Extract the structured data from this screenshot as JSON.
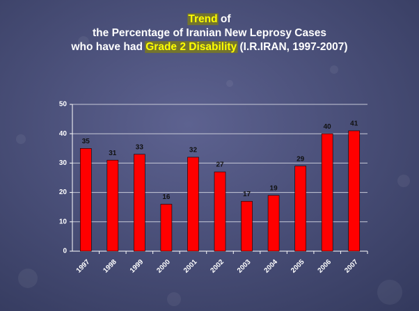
{
  "chart_data": {
    "type": "bar",
    "title_lines": [
      [
        {
          "text": "Trend",
          "highlight": true
        },
        {
          "text": " of",
          "highlight": false
        }
      ],
      [
        {
          "text": "the Percentage of Iranian New Leprosy Cases",
          "highlight": false
        }
      ],
      [
        {
          "text": "who have had ",
          "highlight": false
        },
        {
          "text": "Grade 2 Disability",
          "highlight": true
        },
        {
          "text": " (I.R.IRAN, 1997-2007)",
          "highlight": false
        }
      ]
    ],
    "categories": [
      "1997",
      "1998",
      "1999",
      "2000",
      "2001",
      "2002",
      "2003",
      "2004",
      "2005",
      "2006",
      "2007"
    ],
    "values": [
      35,
      31,
      33,
      16,
      32,
      27,
      17,
      19,
      29,
      40,
      41
    ],
    "color": "#ff0000",
    "ylim": [
      0,
      50
    ],
    "yticks": [
      0,
      10,
      20,
      30,
      40,
      50
    ],
    "grid": true
  }
}
